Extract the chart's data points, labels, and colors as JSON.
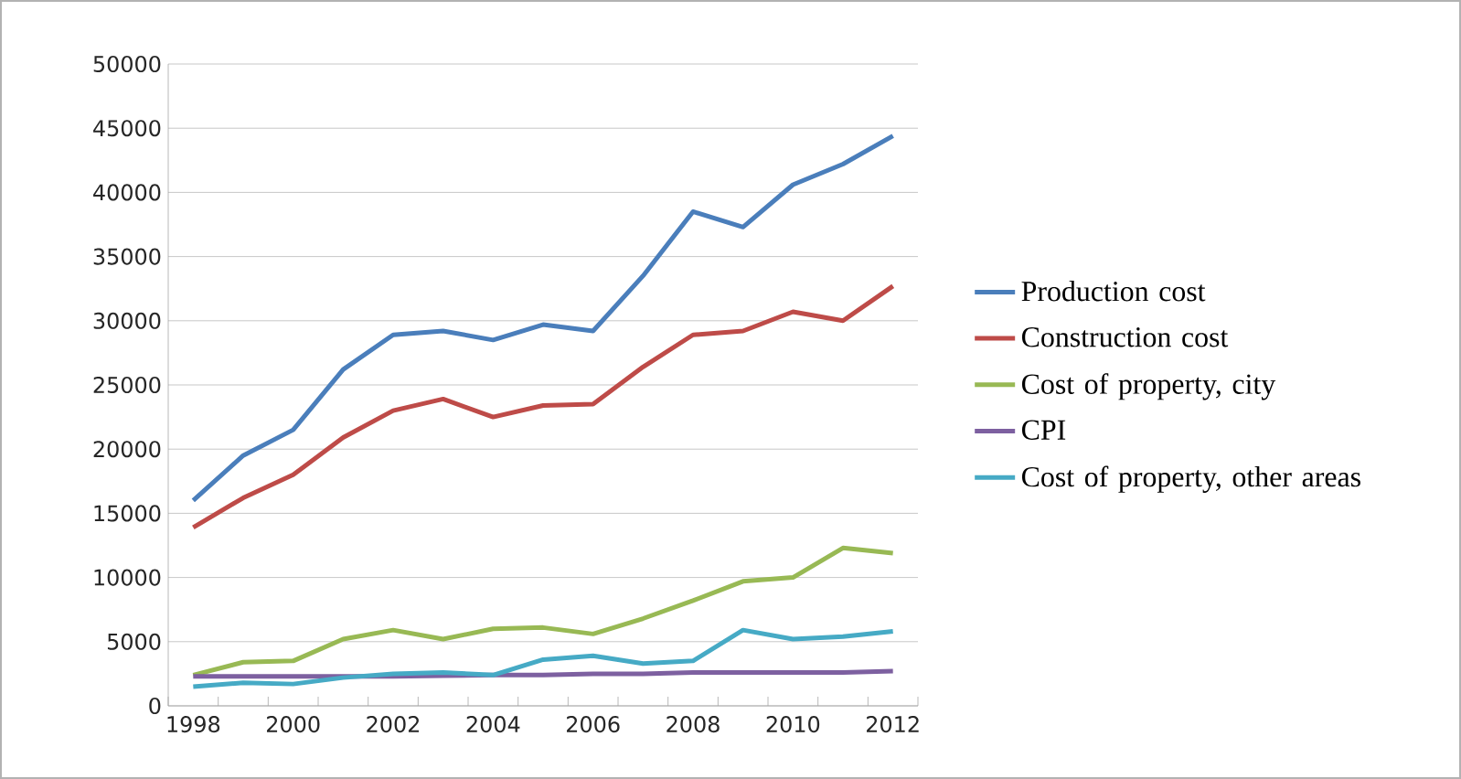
{
  "chart_data": {
    "type": "line",
    "categories": [
      "1998",
      null,
      "2000",
      null,
      "2002",
      null,
      "2004",
      null,
      "2006",
      null,
      "2008",
      null,
      "2010",
      null,
      "2012"
    ],
    "series": [
      {
        "name": "Production cost",
        "color": "#4a7ebb",
        "values": [
          16000,
          19500,
          21500,
          26200,
          28900,
          29200,
          28500,
          29700,
          29200,
          33500,
          38500,
          37300,
          40600,
          42200,
          44400
        ]
      },
      {
        "name": "Construction cost",
        "color": "#be4b48",
        "values": [
          13900,
          16200,
          18000,
          20900,
          23000,
          23900,
          22500,
          23400,
          23500,
          26400,
          28900,
          29200,
          30700,
          30000,
          32700
        ]
      },
      {
        "name": "Cost of property, city",
        "color": "#98b954",
        "values": [
          2400,
          3400,
          3500,
          5200,
          5900,
          5200,
          6000,
          6100,
          5600,
          6800,
          8200,
          9700,
          10000,
          12300,
          11900
        ]
      },
      {
        "name": "CPI",
        "color": "#7d60a0",
        "values": [
          2300,
          2300,
          2300,
          2300,
          2300,
          2350,
          2400,
          2400,
          2500,
          2500,
          2600,
          2600,
          2600,
          2600,
          2700
        ]
      },
      {
        "name": "Cost of property, other areas",
        "color": "#46aac5",
        "values": [
          1500,
          1800,
          1700,
          2200,
          2500,
          2600,
          2400,
          3600,
          3900,
          3300,
          3500,
          5900,
          5200,
          5400,
          5800
        ]
      }
    ],
    "ylim": [
      0,
      50000
    ],
    "yticks": [
      0,
      5000,
      10000,
      15000,
      20000,
      25000,
      30000,
      35000,
      40000,
      45000,
      50000
    ],
    "grid": "y",
    "legend": "right",
    "marker": "none",
    "line_style": "solid"
  }
}
